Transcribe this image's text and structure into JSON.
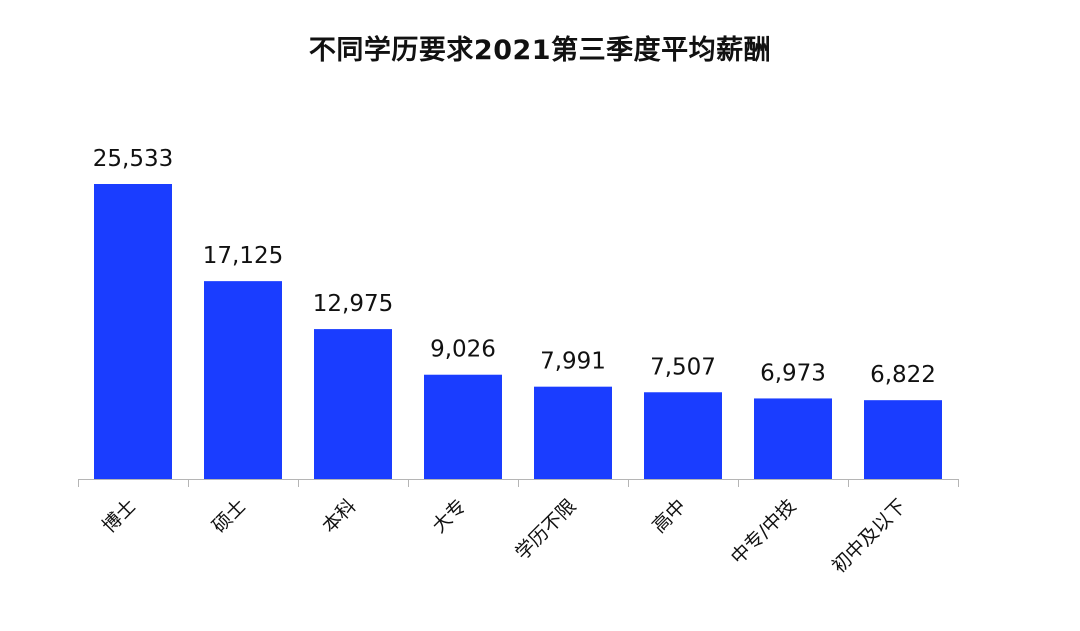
{
  "chart_data": {
    "type": "bar",
    "title": "不同学历要求2021第三季度平均薪酬",
    "xlabel": "",
    "ylabel": "",
    "categories": [
      "博士",
      "硕士",
      "本科",
      "大专",
      "学历不限",
      "高中",
      "中专/中技",
      "初中及以下"
    ],
    "values": [
      25533,
      17125,
      12975,
      9026,
      7991,
      7507,
      6973,
      6822
    ],
    "value_labels": [
      "25,533",
      "17,125",
      "12,975",
      "9,026",
      "7,991",
      "7,507",
      "6,973",
      "6,822"
    ],
    "ylim": [
      0,
      25533
    ],
    "grid": false,
    "legend": "none",
    "bar_color": "#1a3dff",
    "axis_color": "#b5b5b5"
  }
}
